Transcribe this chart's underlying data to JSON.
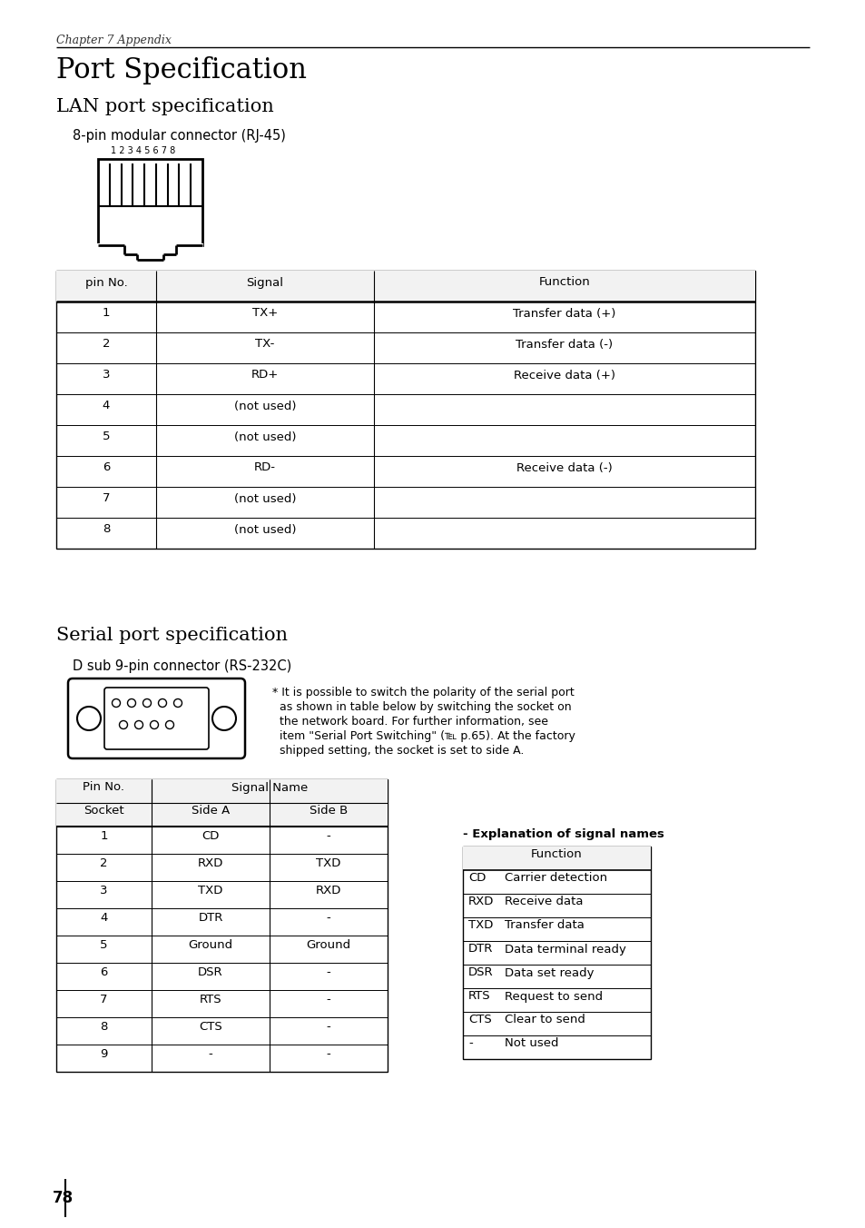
{
  "page_bg": "#ffffff",
  "chapter_label": "Chapter 7 Appendix",
  "main_title": "Port Specification",
  "lan_title": "LAN port specification",
  "lan_subtitle": "8-pin modular connector (RJ-45)",
  "lan_pin_labels": "1 2 3 4 5 6 7 8",
  "lan_table_headers": [
    "pin No.",
    "Signal",
    "Function"
  ],
  "lan_table_rows": [
    [
      "1",
      "TX+",
      "Transfer data (+)"
    ],
    [
      "2",
      "TX-",
      "Transfer data (-)"
    ],
    [
      "3",
      "RD+",
      "Receive data (+)"
    ],
    [
      "4",
      "(not used)",
      ""
    ],
    [
      "5",
      "(not used)",
      ""
    ],
    [
      "6",
      "RD-",
      "Receive data (-)"
    ],
    [
      "7",
      "(not used)",
      ""
    ],
    [
      "8",
      "(not used)",
      ""
    ]
  ],
  "serial_title": "Serial port specification",
  "serial_subtitle": "D sub 9-pin connector (RS-232C)",
  "serial_note": "* It is possible to switch the polarity of the serial port\n  as shown in table below by switching the socket on\n  the network board. For further information, see\n  item \"Serial Port Switching\" (℡ p.65). At the factory\n  shipped setting, the socket is set to side A.",
  "serial_table_rows": [
    [
      "1",
      "CD",
      "-"
    ],
    [
      "2",
      "RXD",
      "TXD"
    ],
    [
      "3",
      "TXD",
      "RXD"
    ],
    [
      "4",
      "DTR",
      "-"
    ],
    [
      "5",
      "Ground",
      "Ground"
    ],
    [
      "6",
      "DSR",
      "-"
    ],
    [
      "7",
      "RTS",
      "-"
    ],
    [
      "8",
      "CTS",
      "-"
    ],
    [
      "9",
      "-",
      "-"
    ]
  ],
  "explanation_title": "- Explanation of signal names",
  "explanation_header": "Function",
  "explanation_rows": [
    [
      "CD",
      "Carrier detection"
    ],
    [
      "RXD",
      "Receive data"
    ],
    [
      "TXD",
      "Transfer data"
    ],
    [
      "DTR",
      "Data terminal ready"
    ],
    [
      "DSR",
      "Data set ready"
    ],
    [
      "RTS",
      "Request to send"
    ],
    [
      "CTS",
      "Clear to send"
    ],
    [
      "-",
      "Not used"
    ]
  ],
  "page_number": "78"
}
